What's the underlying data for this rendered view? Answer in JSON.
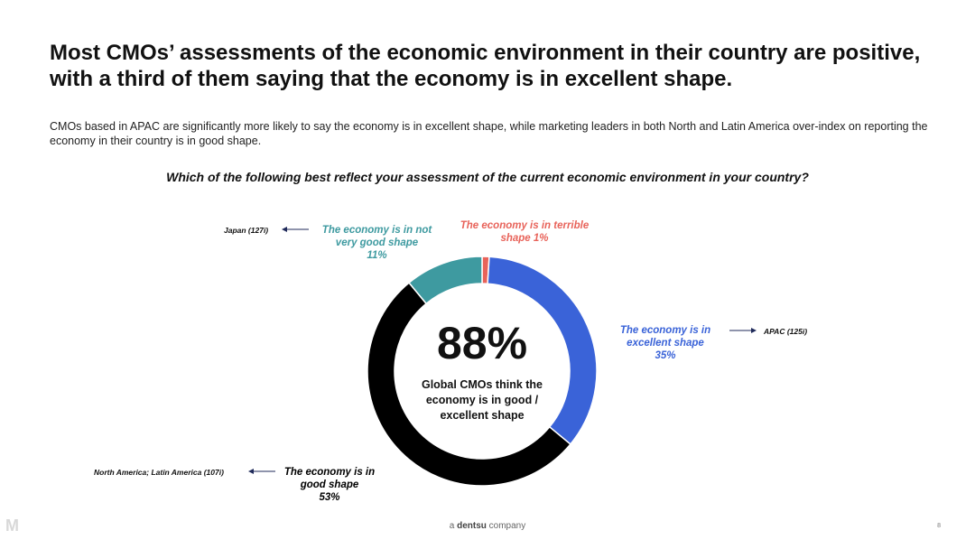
{
  "title": "Most CMOs’ assessments of the economic environment in their country are positive, with a third of them saying that the economy is in excellent shape.",
  "subtitle": "CMOs based in APAC are significantly more likely to say the economy is in excellent shape, while marketing leaders in both North and Latin America over-index on reporting the economy in their country is in good shape.",
  "question": "Which of the following best reflect your assessment of the current economic environment in your country?",
  "center": {
    "value": "88%",
    "text": "Global CMOs think the economy is in good / excellent shape"
  },
  "labels": {
    "excellent": [
      "The economy is in",
      "excellent shape",
      "35%"
    ],
    "good": [
      "The economy is in",
      "good shape",
      "53%"
    ],
    "not_very_good": [
      "The economy is in not",
      "very good shape",
      "11%"
    ],
    "terrible": [
      "The economy is in terrible",
      "shape 1%"
    ]
  },
  "notes": {
    "excellent": "APAC (125i)",
    "good": "North America; Latin America (107i)",
    "not_very_good": "Japan (127i)"
  },
  "footer": {
    "prefix": "a",
    "brand": "dentsu",
    "suffix": "company",
    "page": "8"
  },
  "watermark": "M",
  "chart_data": {
    "type": "pie",
    "donut": true,
    "categories": [
      "The economy is in terrible shape",
      "The economy is in excellent shape",
      "The economy is in good shape",
      "The economy is in not very good shape"
    ],
    "values": [
      1,
      35,
      53,
      11
    ],
    "colors": [
      "#e8635a",
      "#3a63d8",
      "#000000",
      "#3e9aa0"
    ],
    "text_colors": [
      "#e8635a",
      "#3a63d8",
      "#000000",
      "#3e9aa0"
    ]
  }
}
